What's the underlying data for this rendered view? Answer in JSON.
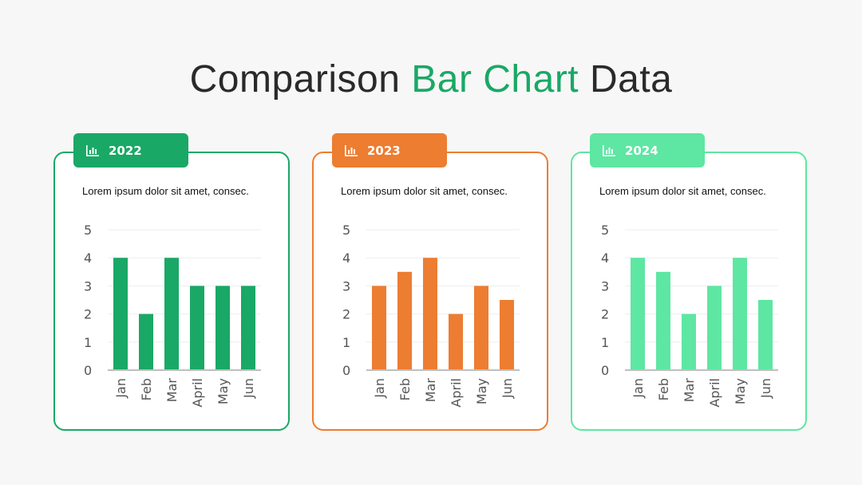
{
  "title": {
    "part1": "Comparison",
    "accent": "Bar Chart",
    "part2": "Data"
  },
  "panels": [
    {
      "year": "2022",
      "color": "#1aa866",
      "description": "Lorem ipsum dolor sit amet, consec."
    },
    {
      "year": "2023",
      "color": "#ed7d31",
      "description": "Lorem ipsum dolor sit amet, consec."
    },
    {
      "year": "2024",
      "color": "#5ee6a3",
      "description": "Lorem ipsum dolor sit amet, consec."
    }
  ],
  "chart_data": [
    {
      "type": "bar",
      "categories": [
        "Jan",
        "Feb",
        "Mar",
        "April",
        "May",
        "Jun"
      ],
      "values": [
        4,
        2,
        4,
        3,
        3,
        3
      ],
      "ylim": [
        0,
        5
      ],
      "yticks": [
        0,
        1,
        2,
        3,
        4,
        5
      ],
      "grid": true
    },
    {
      "type": "bar",
      "categories": [
        "Jan",
        "Feb",
        "Mar",
        "April",
        "May",
        "Jun"
      ],
      "values": [
        3,
        3.5,
        4,
        2,
        3,
        2.5
      ],
      "ylim": [
        0,
        5
      ],
      "yticks": [
        0,
        1,
        2,
        3,
        4,
        5
      ],
      "grid": true
    },
    {
      "type": "bar",
      "categories": [
        "Jan",
        "Feb",
        "Mar",
        "April",
        "May",
        "Jun"
      ],
      "values": [
        4,
        3.5,
        2,
        3,
        4,
        2.5
      ],
      "ylim": [
        0,
        5
      ],
      "yticks": [
        0,
        1,
        2,
        3,
        4,
        5
      ],
      "grid": true
    }
  ]
}
